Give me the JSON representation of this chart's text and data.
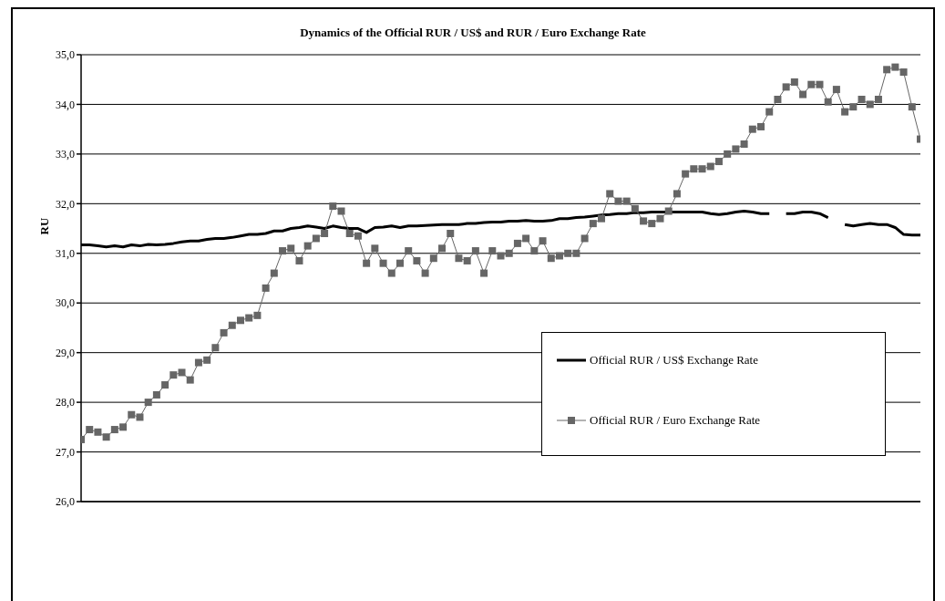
{
  "chart_data": {
    "type": "line",
    "title": "Dynamics of the Official RUR / US$ and RUR / Euro Exchange Rate",
    "ylabel": "RU",
    "categories": [
      null,
      null,
      null,
      null,
      null,
      null,
      null,
      null,
      null,
      null,
      null,
      null,
      null,
      null,
      null,
      null,
      null,
      null,
      null,
      null,
      null,
      null,
      null,
      null,
      null,
      null,
      null,
      null,
      null,
      null,
      null,
      null,
      null,
      null,
      null,
      null,
      null,
      null,
      null,
      null,
      null,
      null,
      null,
      null,
      null,
      null,
      null,
      null,
      null,
      null,
      null,
      null,
      null,
      null,
      null,
      null,
      null,
      null,
      null,
      null,
      null,
      null,
      null,
      null,
      null,
      null,
      null,
      null,
      null,
      null,
      null,
      null,
      null,
      null,
      null,
      null,
      null,
      null,
      null,
      null,
      null,
      null,
      null,
      null,
      null,
      null,
      null,
      null,
      null,
      null,
      null,
      null,
      null,
      null,
      null,
      null,
      null,
      null,
      null,
      null,
      null
    ],
    "series": [
      {
        "name": "Official RUR / US$ Exchange Rate",
        "color": "#000000",
        "marker": "none",
        "values": [
          31.17,
          31.17,
          31.15,
          31.13,
          31.15,
          31.13,
          31.17,
          31.15,
          31.18,
          31.17,
          31.18,
          31.2,
          31.23,
          31.25,
          31.25,
          31.28,
          31.3,
          31.3,
          31.32,
          31.35,
          31.38,
          31.38,
          31.4,
          31.45,
          31.45,
          31.5,
          31.52,
          31.55,
          31.53,
          31.5,
          31.55,
          31.52,
          31.5,
          31.5,
          31.42,
          31.52,
          31.53,
          31.55,
          31.52,
          31.55,
          31.55,
          31.56,
          31.57,
          31.58,
          31.58,
          31.58,
          31.6,
          31.6,
          31.62,
          31.63,
          31.63,
          31.65,
          31.65,
          31.66,
          31.65,
          31.65,
          31.66,
          31.7,
          31.7,
          31.72,
          31.73,
          31.75,
          31.77,
          31.78,
          31.8,
          31.8,
          31.82,
          31.82,
          31.83,
          31.83,
          31.83,
          31.83,
          31.83,
          31.83,
          31.83,
          31.8,
          31.78,
          31.8,
          31.83,
          31.85,
          31.83,
          31.8,
          31.8,
          null,
          31.8,
          31.8,
          31.83,
          31.83,
          31.8,
          31.72,
          null,
          31.58,
          31.55,
          31.58,
          31.6,
          31.58,
          31.58,
          31.52,
          31.38,
          31.37,
          31.37
        ]
      },
      {
        "name": "Official RUR / Euro Exchange Rate",
        "color": "#666666",
        "marker": "square",
        "values": [
          27.25,
          27.45,
          27.4,
          27.3,
          27.45,
          27.5,
          27.75,
          27.7,
          28.0,
          28.15,
          28.35,
          28.55,
          28.6,
          28.45,
          28.8,
          28.85,
          29.1,
          29.4,
          29.55,
          29.65,
          29.7,
          29.75,
          30.3,
          30.6,
          31.05,
          31.1,
          30.85,
          31.15,
          31.3,
          31.4,
          31.95,
          31.85,
          31.4,
          31.35,
          30.8,
          31.1,
          30.8,
          30.6,
          30.8,
          31.05,
          30.85,
          30.6,
          30.9,
          31.1,
          31.4,
          30.9,
          30.85,
          31.05,
          30.6,
          31.05,
          30.95,
          31.0,
          31.2,
          31.3,
          31.05,
          31.25,
          30.9,
          30.95,
          31.0,
          31.0,
          31.3,
          31.6,
          31.7,
          32.2,
          32.05,
          32.05,
          31.9,
          31.65,
          31.6,
          31.7,
          31.85,
          32.2,
          32.6,
          32.7,
          32.7,
          32.75,
          32.85,
          33.0,
          33.1,
          33.2,
          33.5,
          33.55,
          33.85,
          34.1,
          34.35,
          34.45,
          34.2,
          34.4,
          34.4,
          34.05,
          34.3,
          33.85,
          33.95,
          34.1,
          34.0,
          34.1,
          34.7,
          34.75,
          34.65,
          33.95,
          33.3
        ]
      }
    ],
    "ylim": [
      26,
      35
    ],
    "yticks": [
      {
        "value": 26,
        "label": "26,0"
      },
      {
        "value": 27,
        "label": "27,0"
      },
      {
        "value": 28,
        "label": "28,0"
      },
      {
        "value": 29,
        "label": "29,0"
      },
      {
        "value": 30,
        "label": "30,0"
      },
      {
        "value": 31,
        "label": "31,0"
      },
      {
        "value": 32,
        "label": "32,0"
      },
      {
        "value": 33,
        "label": "33,0"
      },
      {
        "value": 34,
        "label": "34,0"
      },
      {
        "value": 35,
        "label": "35,0"
      }
    ],
    "grid": "y",
    "legend": "right",
    "tick_labels": "y"
  }
}
